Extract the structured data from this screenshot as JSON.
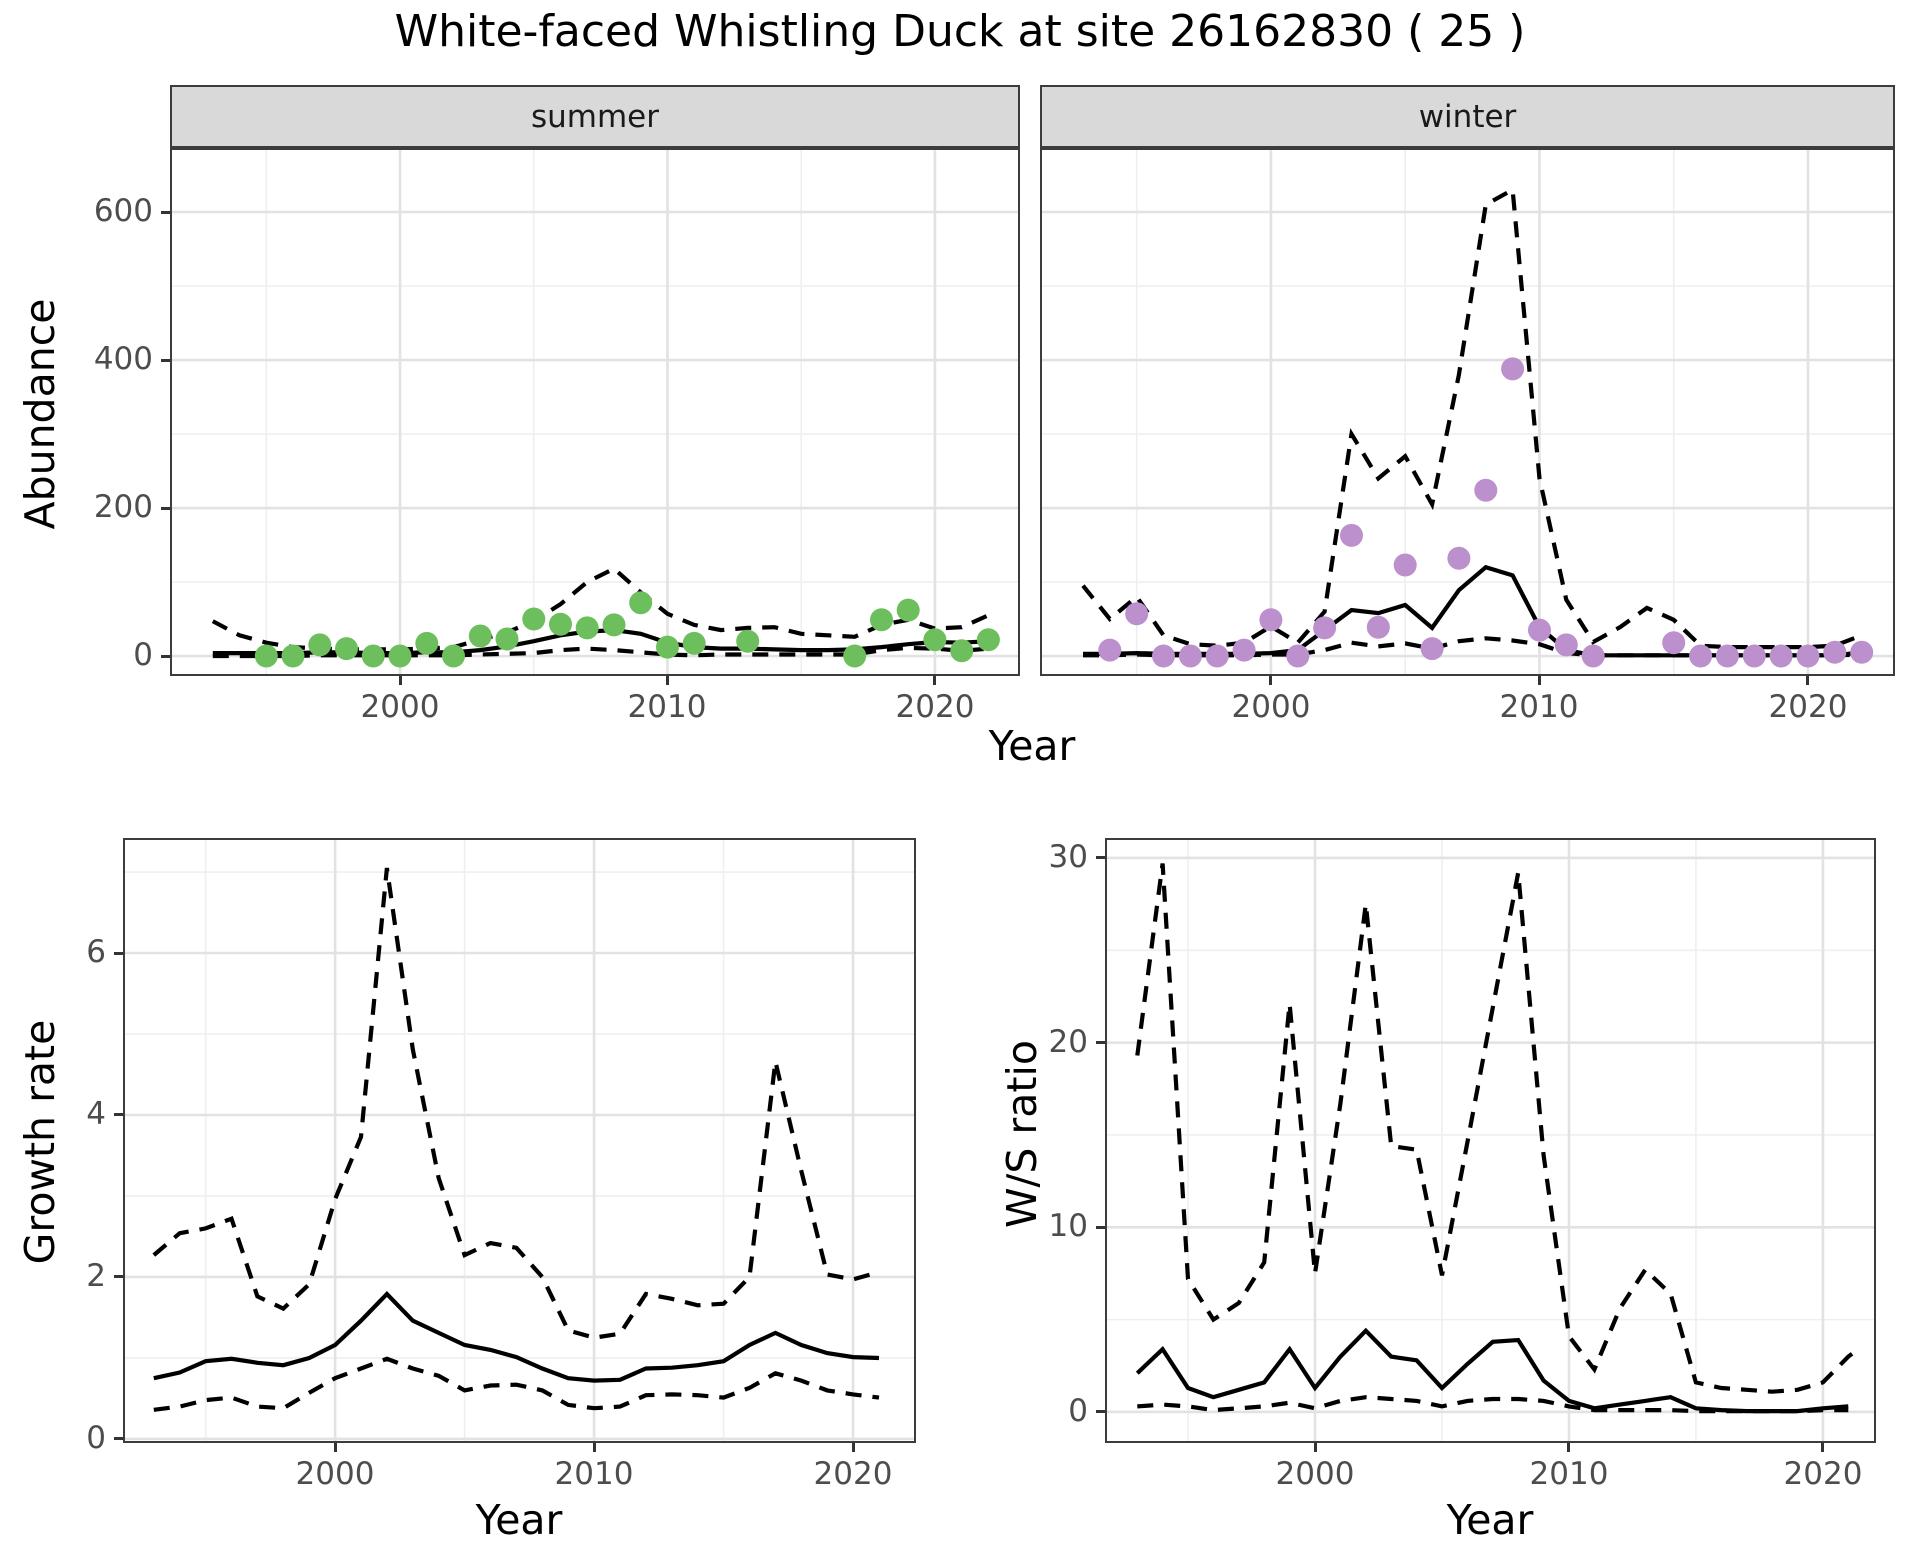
{
  "title": "White-faced Whistling Duck at site 26162830 ( 25 )",
  "labels": {
    "abundance": "Abundance",
    "growth_rate": "Growth rate",
    "ws_ratio": "W/S ratio",
    "year": "Year"
  },
  "facets": {
    "summer": "summer",
    "winter": "winter"
  },
  "colors": {
    "summer_points": "#6cbf5c",
    "winter_points": "#bb90cc",
    "line": "#000000",
    "strip_fill": "#d9d9d9",
    "grid_major": "#e2e2e2",
    "grid_minor": "#efefef",
    "tick_text": "#4d4d4d"
  },
  "chart_data": [
    {
      "id": "abundance_summer",
      "type": "line",
      "facet": "summer",
      "ylabel": "Abundance",
      "xlabel": "Year",
      "xlim": [
        1991.4,
        2023.18
      ],
      "ylim": [
        -27,
        686.5
      ],
      "x_major": [
        2000,
        2010,
        2020
      ],
      "x_minor": [
        1995,
        2005,
        2015
      ],
      "y_major": [
        0,
        200,
        400,
        600
      ],
      "y_minor": [
        100,
        300,
        500
      ],
      "legend_position": "none",
      "grid": true,
      "point_color": "#6cbf5c",
      "points": {
        "x": [
          1995,
          1996,
          1997,
          1998,
          1999,
          2000,
          2001,
          2002,
          2003,
          2004,
          2005,
          2006,
          2007,
          2008,
          2009,
          2010,
          2011,
          2013,
          2017,
          2018,
          2019,
          2020,
          2021,
          2022
        ],
        "y": [
          0,
          0,
          15,
          10,
          0,
          0,
          17,
          0,
          27,
          23,
          50,
          43,
          38,
          42,
          72,
          12,
          17,
          20,
          0,
          49,
          62,
          22,
          7,
          22
        ]
      },
      "fit": {
        "x": [
          1993,
          1994,
          1995,
          1996,
          1997,
          1998,
          1999,
          2000,
          2001,
          2002,
          2003,
          2004,
          2005,
          2006,
          2007,
          2008,
          2009,
          2010,
          2011,
          2012,
          2013,
          2014,
          2015,
          2016,
          2017,
          2018,
          2019,
          2020,
          2021,
          2022
        ],
        "y": [
          4,
          4,
          4,
          4,
          5,
          5,
          4,
          4,
          5,
          5,
          8,
          13,
          20,
          28,
          33,
          35,
          30,
          18,
          12,
          10,
          10,
          9,
          8,
          8,
          9,
          12,
          16,
          19,
          18,
          20
        ]
      },
      "upper": {
        "x": [
          1993,
          1994,
          1995,
          1996,
          1997,
          1998,
          1999,
          2000,
          2001,
          2002,
          2003,
          2004,
          2005,
          2006,
          2007,
          2008,
          2009,
          2010,
          2011,
          2012,
          2013,
          2014,
          2015,
          2016,
          2017,
          2018,
          2019,
          2020,
          2021,
          2022
        ],
        "y": [
          47,
          28,
          18,
          12,
          10,
          9,
          9,
          9,
          10,
          12,
          22,
          32,
          47,
          70,
          100,
          118,
          86,
          57,
          42,
          35,
          38,
          39,
          30,
          28,
          26,
          42,
          49,
          37,
          39,
          55
        ]
      },
      "lower": {
        "x": [
          1993,
          1994,
          1995,
          1996,
          1997,
          1998,
          1999,
          2000,
          2001,
          2002,
          2003,
          2004,
          2005,
          2006,
          2007,
          2008,
          2009,
          2010,
          2011,
          2012,
          2013,
          2014,
          2015,
          2016,
          2017,
          2018,
          2019,
          2020,
          2021,
          2022
        ],
        "y": [
          0,
          0,
          0,
          0,
          1,
          1,
          1,
          1,
          1,
          1,
          2,
          3,
          4,
          8,
          10,
          8,
          5,
          2,
          1,
          2,
          2,
          2,
          2,
          2,
          2,
          8,
          11,
          10,
          7,
          10
        ]
      }
    },
    {
      "id": "abundance_winter",
      "type": "line",
      "facet": "winter",
      "ylabel": "Abundance",
      "xlabel": "Year",
      "xlim": [
        1991.4,
        2023.24
      ],
      "ylim": [
        -27,
        686.5
      ],
      "x_major": [
        2000,
        2010,
        2020
      ],
      "x_minor": [
        1995,
        2005,
        2015
      ],
      "y_major": [
        0,
        200,
        400,
        600
      ],
      "y_minor": [
        100,
        300,
        500
      ],
      "legend_position": "none",
      "grid": true,
      "point_color": "#bb90cc",
      "points": {
        "x": [
          1994,
          1995,
          1996,
          1997,
          1998,
          1999,
          2000,
          2001,
          2002,
          2003,
          2004,
          2005,
          2006,
          2007,
          2008,
          2009,
          2010,
          2011,
          2012,
          2015,
          2016,
          2017,
          2018,
          2019,
          2020,
          2021,
          2022
        ],
        "y": [
          8,
          57,
          0,
          0,
          0,
          8,
          49,
          0,
          38,
          163,
          39,
          123,
          10,
          132,
          224,
          388,
          35,
          15,
          0,
          18,
          0,
          0,
          0,
          0,
          0,
          5,
          5
        ]
      },
      "fit": {
        "x": [
          1993,
          1994,
          1995,
          1996,
          1997,
          1998,
          1999,
          2000,
          2001,
          2002,
          2003,
          2004,
          2005,
          2006,
          2007,
          2008,
          2009,
          2010,
          2011,
          2012,
          2013,
          2014,
          2015,
          2016,
          2017,
          2018,
          2019,
          2020,
          2021,
          2022
        ],
        "y": [
          3,
          3,
          4,
          3,
          3,
          3,
          3,
          4,
          8,
          35,
          62,
          58,
          69,
          38,
          89,
          120,
          109,
          39,
          8,
          1,
          1,
          1,
          1,
          1,
          1,
          1,
          1,
          1,
          1,
          5
        ]
      },
      "upper": {
        "x": [
          1993,
          1994,
          1995,
          1996,
          1997,
          1998,
          1999,
          2000,
          2001,
          2002,
          2003,
          2004,
          2005,
          2006,
          2007,
          2008,
          2009,
          2010,
          2011,
          2012,
          2013,
          2014,
          2015,
          2016,
          2017,
          2018,
          2019,
          2020,
          2021,
          2022
        ],
        "y": [
          95,
          50,
          80,
          28,
          16,
          14,
          18,
          40,
          18,
          60,
          300,
          240,
          270,
          205,
          380,
          610,
          630,
          240,
          76,
          19,
          39,
          65,
          49,
          14,
          12,
          12,
          12,
          12,
          14,
          28
        ]
      },
      "lower": {
        "x": [
          1993,
          1994,
          1995,
          1996,
          1997,
          1998,
          1999,
          2000,
          2001,
          2002,
          2003,
          2004,
          2005,
          2006,
          2007,
          2008,
          2009,
          2010,
          2011,
          2012,
          2013,
          2014,
          2015,
          2016,
          2017,
          2018,
          2019,
          2020,
          2021,
          2022
        ],
        "y": [
          1,
          1,
          2,
          1,
          1,
          1,
          1,
          2,
          2,
          8,
          18,
          13,
          17,
          10,
          20,
          24,
          21,
          16,
          4,
          1,
          1,
          1,
          1,
          1,
          1,
          1,
          1,
          1,
          1,
          2
        ]
      }
    },
    {
      "id": "growth_rate",
      "type": "line",
      "facet": null,
      "ylabel": "Growth rate",
      "xlabel": "Year",
      "xlim": [
        1991.81,
        2022.43
      ],
      "ylim": [
        -0.05,
        7.42
      ],
      "x_major": [
        2000,
        2010,
        2020
      ],
      "x_minor": [
        1995,
        2005,
        2015
      ],
      "y_major": [
        0,
        2,
        4,
        6
      ],
      "y_minor": [
        1,
        3,
        5,
        7
      ],
      "legend_position": "none",
      "grid": true,
      "point_color": null,
      "points": {
        "x": [],
        "y": []
      },
      "fit": {
        "x": [
          1993,
          1994,
          1995,
          1996,
          1997,
          1998,
          1999,
          2000,
          2001,
          2002,
          2003,
          2004,
          2005,
          2006,
          2007,
          2008,
          2009,
          2010,
          2011,
          2012,
          2013,
          2014,
          2015,
          2016,
          2017,
          2018,
          2019,
          2020,
          2021
        ],
        "y": [
          0.75,
          0.82,
          0.96,
          0.99,
          0.94,
          0.91,
          1.0,
          1.16,
          1.46,
          1.79,
          1.46,
          1.31,
          1.16,
          1.1,
          1.01,
          0.87,
          0.75,
          0.72,
          0.73,
          0.87,
          0.88,
          0.91,
          0.96,
          1.16,
          1.31,
          1.16,
          1.06,
          1.01,
          1.0
        ]
      },
      "upper": {
        "x": [
          1993,
          1994,
          1995,
          1996,
          1997,
          1998,
          1999,
          2000,
          2001,
          2002,
          2003,
          2004,
          2005,
          2006,
          2007,
          2008,
          2009,
          2010,
          2011,
          2012,
          2013,
          2014,
          2015,
          2016,
          2017,
          2018,
          2019,
          2020,
          2021
        ],
        "y": [
          2.27,
          2.54,
          2.6,
          2.72,
          1.76,
          1.61,
          1.91,
          2.96,
          3.73,
          7.05,
          4.81,
          3.22,
          2.27,
          2.42,
          2.36,
          2.0,
          1.34,
          1.25,
          1.3,
          1.79,
          1.73,
          1.65,
          1.67,
          2.0,
          4.66,
          3.31,
          2.03,
          1.97,
          2.06
        ]
      },
      "lower": {
        "x": [
          1993,
          1994,
          1995,
          1996,
          1997,
          1998,
          1999,
          2000,
          2001,
          2002,
          2003,
          2004,
          2005,
          2006,
          2007,
          2008,
          2009,
          2010,
          2011,
          2012,
          2013,
          2014,
          2015,
          2016,
          2017,
          2018,
          2019,
          2020,
          2021
        ],
        "y": [
          0.36,
          0.4,
          0.48,
          0.51,
          0.4,
          0.38,
          0.57,
          0.75,
          0.87,
          0.99,
          0.87,
          0.78,
          0.6,
          0.66,
          0.67,
          0.6,
          0.42,
          0.38,
          0.4,
          0.54,
          0.55,
          0.54,
          0.51,
          0.63,
          0.81,
          0.72,
          0.6,
          0.55,
          0.51
        ]
      }
    },
    {
      "id": "ws_ratio",
      "type": "line",
      "facet": null,
      "ylabel": "W/S ratio",
      "xlabel": "Year",
      "xlim": [
        1991.73,
        2022.09
      ],
      "ylim": [
        -1.68,
        31.08
      ],
      "x_major": [
        2000,
        2010,
        2020
      ],
      "x_minor": [
        1995,
        2005,
        2015
      ],
      "y_major": [
        0,
        10,
        20,
        30
      ],
      "y_minor": [
        5,
        15,
        25
      ],
      "legend_position": "none",
      "grid": true,
      "point_color": null,
      "points": {
        "x": [],
        "y": []
      },
      "fit": {
        "x": [
          1993,
          1994,
          1995,
          1996,
          1997,
          1998,
          1999,
          2000,
          2001,
          2002,
          2003,
          2004,
          2005,
          2006,
          2007,
          2008,
          2009,
          2010,
          2011,
          2012,
          2013,
          2014,
          2015,
          2016,
          2017,
          2018,
          2019,
          2020,
          2021
        ],
        "y": [
          2.1,
          3.4,
          1.3,
          0.8,
          1.2,
          1.6,
          3.4,
          1.3,
          3.0,
          4.4,
          3.0,
          2.8,
          1.3,
          2.6,
          3.8,
          3.9,
          1.7,
          0.6,
          0.2,
          0.4,
          0.6,
          0.8,
          0.2,
          0.1,
          0.05,
          0.05,
          0.05,
          0.2,
          0.3
        ]
      },
      "upper": {
        "x": [
          1993,
          1994,
          1995,
          1996,
          1997,
          1998,
          1999,
          2000,
          2001,
          2002,
          2003,
          2004,
          2005,
          2006,
          2007,
          2008,
          2009,
          2010,
          2011,
          2012,
          2013,
          2014,
          2015,
          2016,
          2017,
          2018,
          2019,
          2020,
          2021,
          2021.4
        ],
        "y": [
          19.3,
          29.7,
          7.2,
          5.0,
          5.9,
          8.1,
          22.1,
          7.5,
          16.7,
          27.5,
          14.4,
          14.2,
          7.4,
          14.6,
          21.9,
          29.2,
          13.9,
          4.1,
          2.3,
          5.6,
          7.7,
          6.4,
          1.6,
          1.3,
          1.2,
          1.1,
          1.2,
          1.6,
          3.0,
          3.4
        ]
      },
      "lower": {
        "x": [
          1993,
          1994,
          1995,
          1996,
          1997,
          1998,
          1999,
          2000,
          2001,
          2002,
          2003,
          2004,
          2005,
          2006,
          2007,
          2008,
          2009,
          2010,
          2011,
          2012,
          2013,
          2014,
          2015,
          2016,
          2017,
          2018,
          2019,
          2020,
          2021
        ],
        "y": [
          0.3,
          0.4,
          0.3,
          0.1,
          0.2,
          0.3,
          0.5,
          0.2,
          0.6,
          0.8,
          0.7,
          0.6,
          0.3,
          0.6,
          0.7,
          0.7,
          0.6,
          0.3,
          0.1,
          0.1,
          0.1,
          0.1,
          0.05,
          0.05,
          0.05,
          0.05,
          0.05,
          0.1,
          0.1
        ]
      }
    }
  ]
}
